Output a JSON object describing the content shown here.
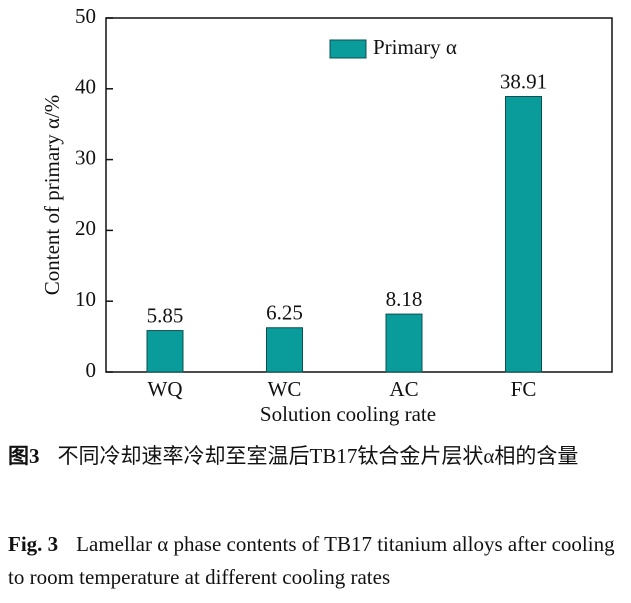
{
  "chart_data": {
    "type": "bar",
    "categories": [
      "WQ",
      "WC",
      "AC",
      "FC"
    ],
    "series": [
      {
        "name": "Primary α",
        "color": "#0a9b9b",
        "values": [
          5.85,
          6.25,
          8.18,
          38.91
        ]
      }
    ],
    "ylim": [
      0,
      50
    ],
    "yticks": [
      0,
      10,
      20,
      30,
      40,
      50
    ],
    "xlabel": "Solution cooling rate",
    "ylabel": "Content of primary α/%",
    "legend": "top"
  },
  "caption": {
    "cn_label": "图3",
    "cn_text": "不同冷却速率冷却至室温后TB17钛合金片层状α相的含量",
    "en_label": "Fig. 3",
    "en_text": "Lamellar α phase contents of TB17 titanium alloys after cooling to room temperature at different cooling rates"
  }
}
